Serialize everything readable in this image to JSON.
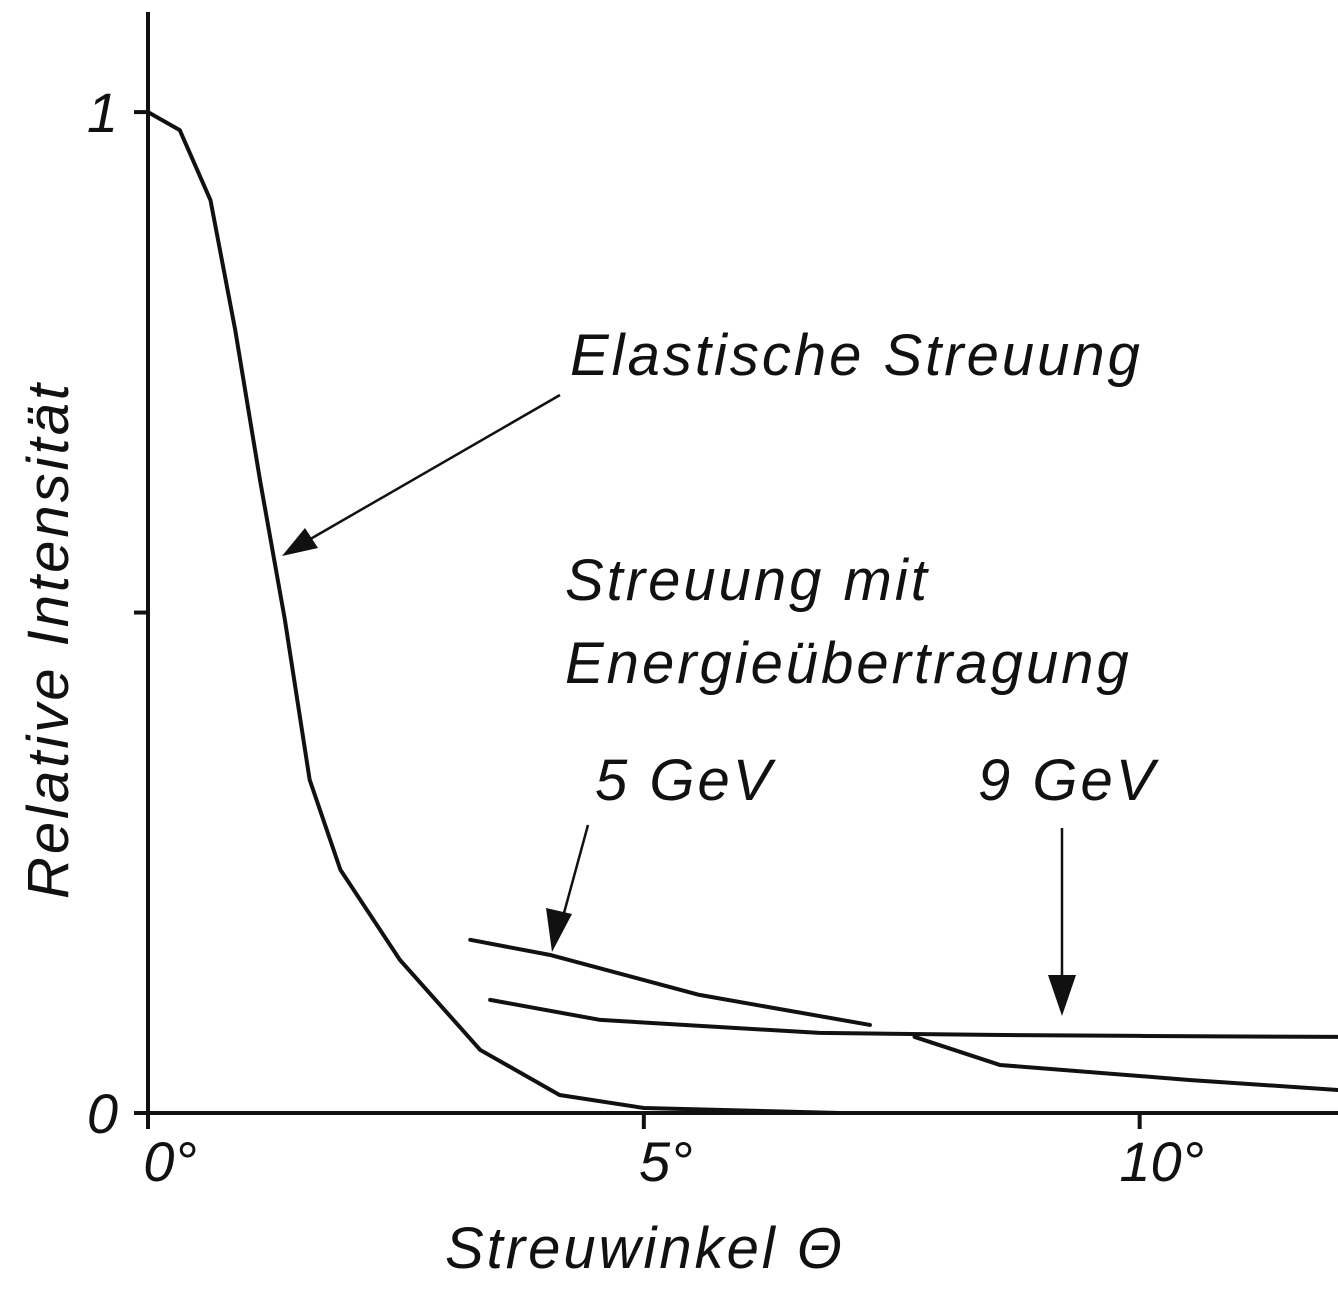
{
  "chart_data": {
    "type": "line",
    "xlabel": "Streuwinkel Θ",
    "ylabel": "Relative Intensität",
    "xlim": [
      0,
      12.0
    ],
    "ylim": [
      0,
      1.1
    ],
    "xticks": [
      {
        "value": 0,
        "label": "0°"
      },
      {
        "value": 5,
        "label": "5°"
      },
      {
        "value": 10,
        "label": "10°"
      }
    ],
    "yticks": [
      0,
      1
    ],
    "yminor": [
      0.5
    ],
    "color": "#111111",
    "annotations": [
      "Streuung mit",
      "Energieübertragung"
    ],
    "series": [
      {
        "name": "Elastische Streuung",
        "color": "#111111",
        "x": [
          0,
          0.32,
          0.63,
          0.88,
          1.13,
          1.38,
          1.63,
          1.94,
          2.54,
          3.35,
          4.15,
          5,
          6.98
        ],
        "values": [
          1.0,
          0.982,
          0.912,
          0.782,
          0.632,
          0.493,
          0.333,
          0.243,
          0.153,
          0.063,
          0.018,
          0.005,
          0
        ]
      },
      {
        "name": "5 GeV",
        "color": "#111111",
        "x": [
          3.25,
          4.05,
          5.56,
          7.28,
          7.5,
          7.73,
          8.59,
          10.5,
          12.0
        ],
        "values": [
          0.173,
          0.158,
          0.118,
          0.088,
          null,
          0.076,
          0.048,
          0.033,
          0.023
        ]
      },
      {
        "name": "9 GeV",
        "color": "#111111",
        "x": [
          3.45,
          4.56,
          6.77,
          8.5,
          10,
          12.0
        ],
        "values": [
          0.113,
          0.093,
          0.08,
          0.078,
          0.077,
          0.076
        ]
      }
    ]
  }
}
